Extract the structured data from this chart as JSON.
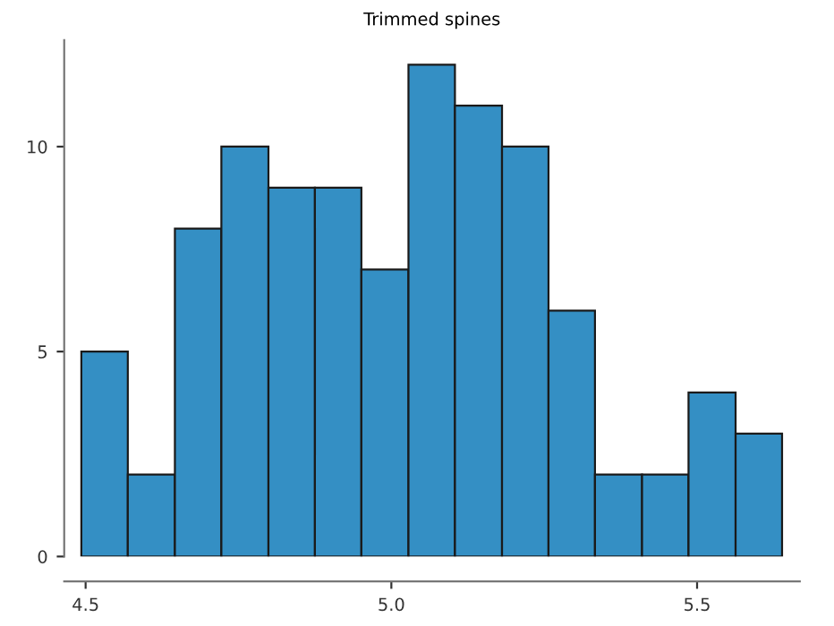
{
  "chart_data": {
    "type": "histogram",
    "title": "Trimmed spines",
    "bins": [
      4.493,
      4.569,
      4.646,
      4.722,
      4.799,
      4.875,
      4.951,
      5.028,
      5.104,
      5.181,
      5.257,
      5.333,
      5.41,
      5.486,
      5.563,
      5.639
    ],
    "values": [
      5,
      2,
      8,
      10,
      9,
      9,
      7,
      12,
      11,
      10,
      6,
      2,
      2,
      4,
      3
    ],
    "color": "#348fc4",
    "xlim": [
      4.465,
      5.668
    ],
    "ylim": [
      0,
      12.6
    ],
    "xticks": [
      4.5,
      {
        "value": 5.0,
        "label": "5.0"
      },
      5.5
    ],
    "yticks": [
      0,
      5,
      10
    ],
    "grid": false,
    "legend": false
  }
}
